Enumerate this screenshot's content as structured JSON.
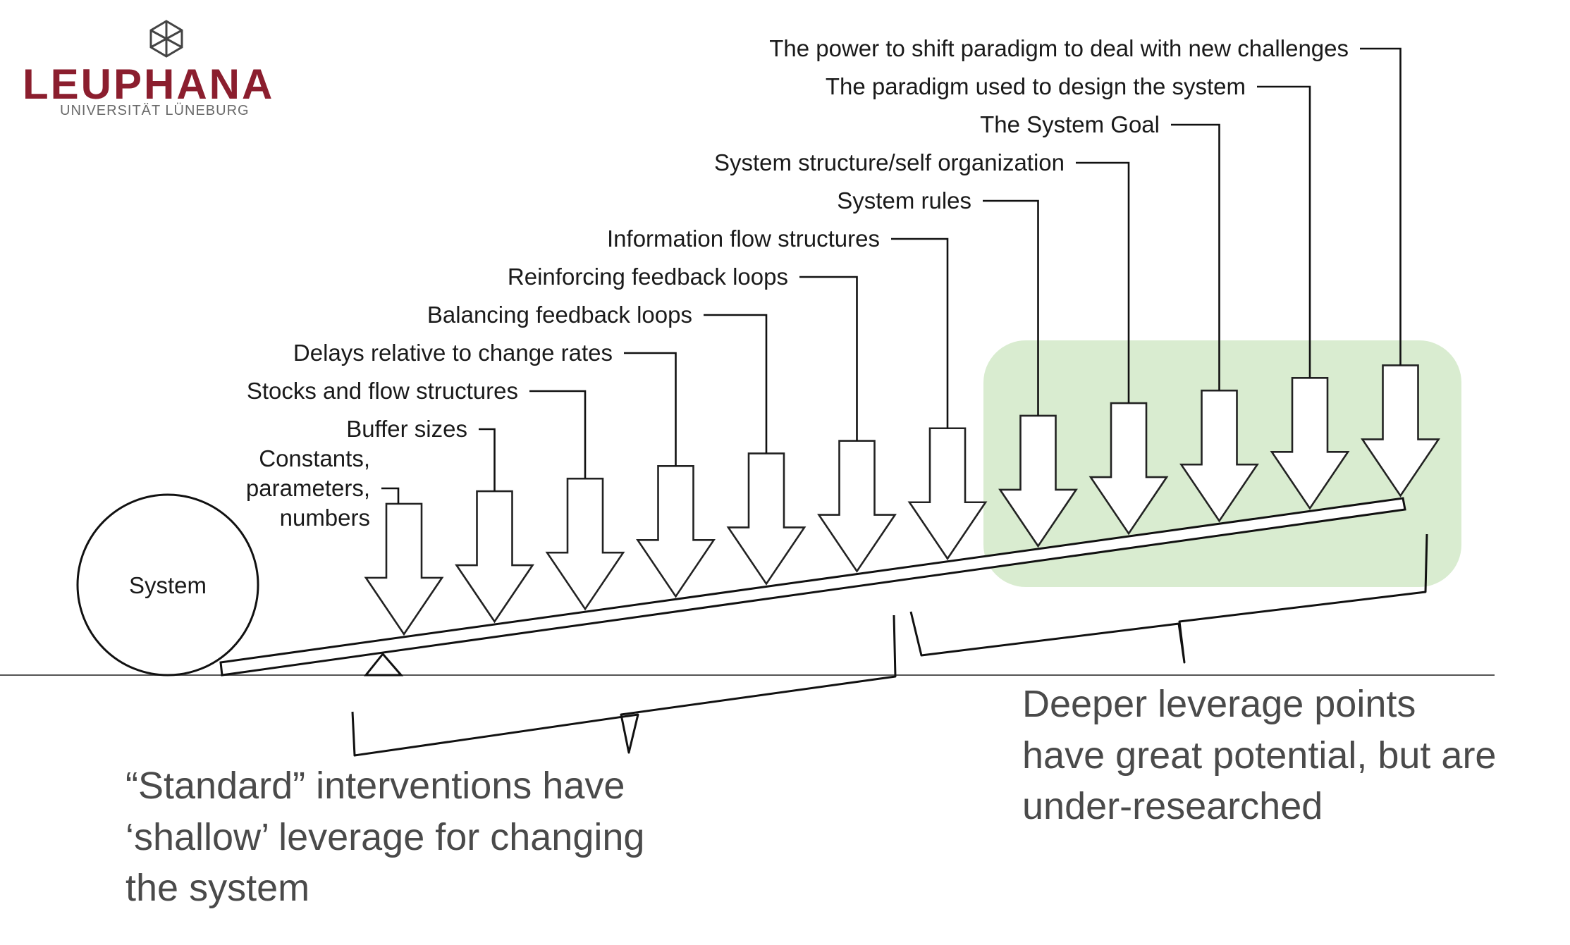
{
  "logo": {
    "name": "LEUPHANA",
    "subtitle": "UNIVERSITÄT LÜNEBURG",
    "brand_color": "#8b1e2e",
    "icon": "hexagon-cube-icon"
  },
  "diagram": {
    "system_label": "System",
    "levers": [
      {
        "lines": [
          "Constants,",
          "parameters,",
          "numbers"
        ]
      },
      {
        "lines": [
          "Buffer sizes"
        ]
      },
      {
        "lines": [
          "Stocks and flow structures"
        ]
      },
      {
        "lines": [
          "Delays relative to change rates"
        ]
      },
      {
        "lines": [
          "Balancing feedback loops"
        ]
      },
      {
        "lines": [
          "Reinforcing feedback loops"
        ]
      },
      {
        "lines": [
          "Information flow structures"
        ]
      },
      {
        "lines": [
          "System rules"
        ]
      },
      {
        "lines": [
          "System structure/self organization"
        ]
      },
      {
        "lines": [
          "The System Goal"
        ]
      },
      {
        "lines": [
          "The paradigm used to design the system"
        ]
      },
      {
        "lines": [
          "The power to shift paradigm to deal with new challenges"
        ]
      }
    ],
    "highlight_color": "#d9ecd0"
  },
  "captions": {
    "standard": [
      "“Standard” interventions have",
      "‘shallow’ leverage  for changing",
      "the system"
    ],
    "deeper": [
      "Deeper leverage points",
      "have great potential, but are",
      "under-researched"
    ]
  }
}
